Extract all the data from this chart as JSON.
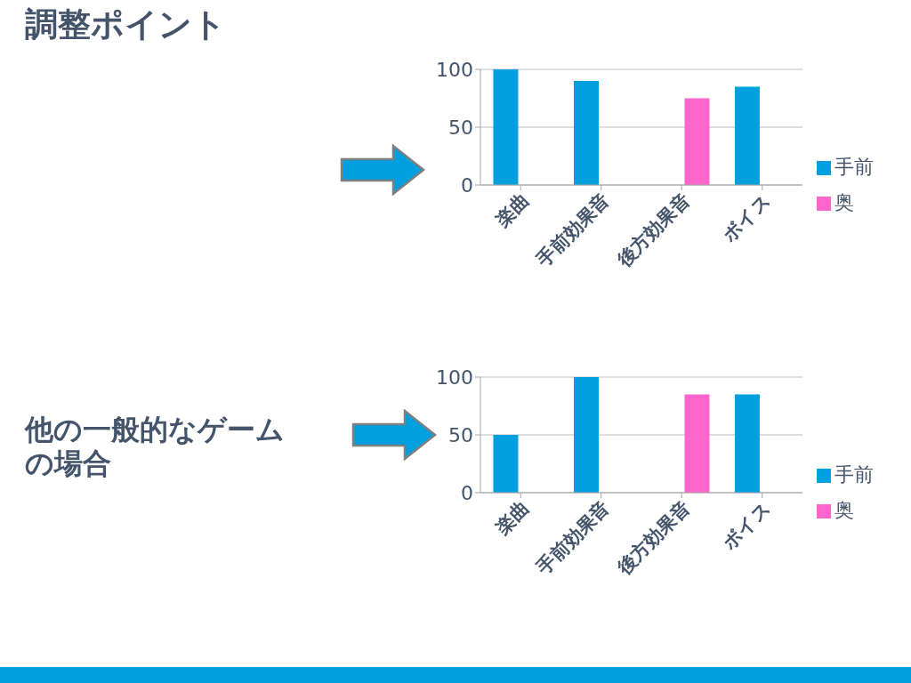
{
  "chart_data": [
    {
      "type": "bar",
      "annotations": [
        "調整ポイント"
      ],
      "categories": [
        "楽曲",
        "手前効果音",
        "後方効果音",
        "ボイス"
      ],
      "series": [
        {
          "name": "手前",
          "color": "#00a0de",
          "values": [
            100,
            90,
            0,
            85
          ]
        },
        {
          "name": "奥",
          "color": "#ff66cc",
          "values": [
            0,
            0,
            75,
            0
          ]
        }
      ],
      "ylim": [
        0,
        100
      ],
      "yticks": [
        0,
        50,
        100
      ],
      "grid": "y",
      "legend": "right"
    },
    {
      "type": "bar",
      "title": "他の一般的なゲームの場合",
      "categories": [
        "楽曲",
        "手前効果音",
        "後方効果音",
        "ボイス"
      ],
      "series": [
        {
          "name": "手前",
          "color": "#00a0de",
          "values": [
            50,
            100,
            0,
            85
          ]
        },
        {
          "name": "奥",
          "color": "#ff66cc",
          "values": [
            0,
            0,
            85,
            0
          ]
        }
      ],
      "ylim": [
        0,
        100
      ],
      "yticks": [
        0,
        50,
        100
      ],
      "grid": "y",
      "legend": "right"
    }
  ]
}
